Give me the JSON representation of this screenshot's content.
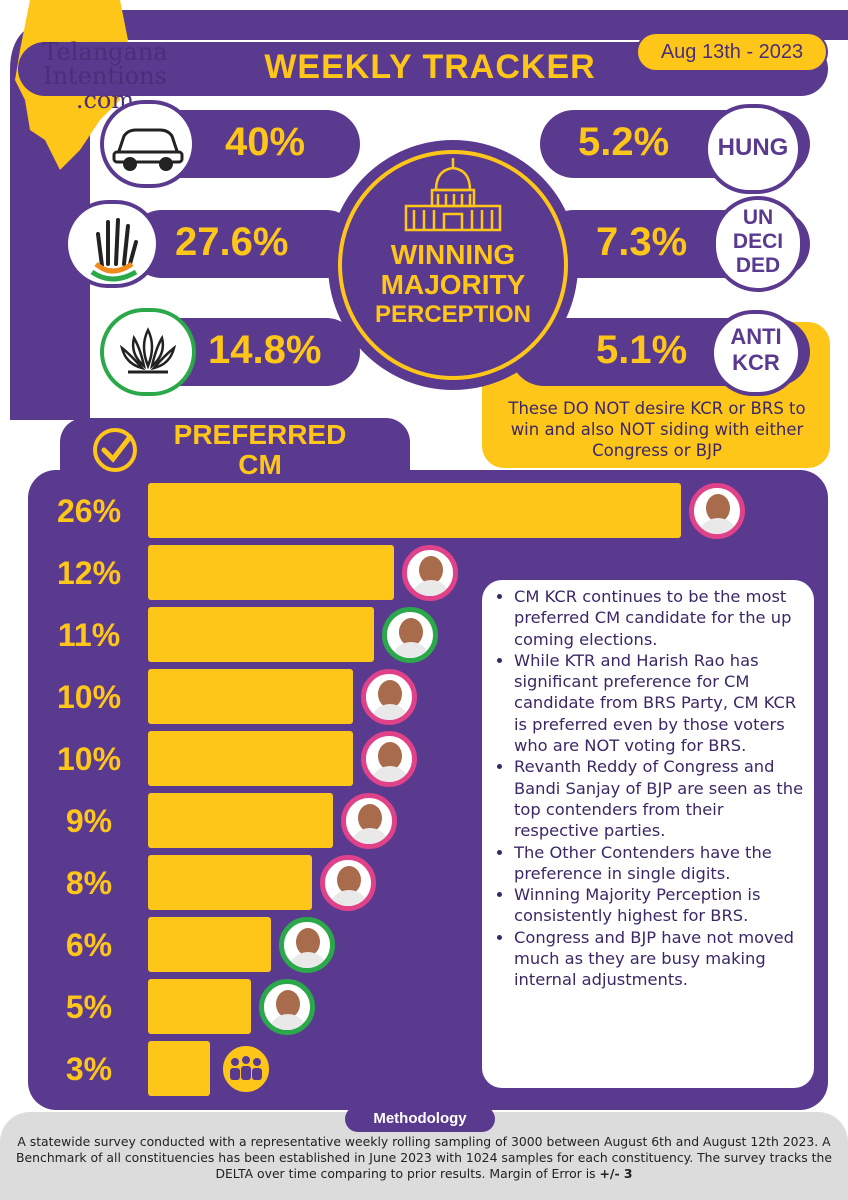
{
  "header": {
    "logo_line1": "Telangana",
    "logo_line2": "Intentions",
    "logo_line3": ".com",
    "title": "WEEKLY TRACKER",
    "date": "Aug 13th -  2023"
  },
  "perception": {
    "center_title_line1": "WINNING",
    "center_title_line2": "MAJORITY",
    "center_title_line3": "PERCEPTION",
    "left": [
      {
        "value": "40%",
        "icon": "car-icon"
      },
      {
        "value": "27.6%",
        "icon": "hand-icon"
      },
      {
        "value": "14.8%",
        "icon": "lotus-icon"
      }
    ],
    "right": [
      {
        "value": "5.2%",
        "label_lines": [
          "HUNG"
        ]
      },
      {
        "value": "7.3%",
        "label_lines": [
          "UN",
          "DECI",
          "DED"
        ]
      },
      {
        "value": "5.1%",
        "label_lines": [
          "ANTI",
          "KCR"
        ]
      }
    ],
    "anti_note": "These DO NOT desire KCR or BRS to win and also NOT siding with either Congress or BJP"
  },
  "preferred_cm": {
    "title_line1": "PREFERRED",
    "title_line2": "CM"
  },
  "chart_data": {
    "type": "bar",
    "orientation": "horizontal",
    "title": "PREFERRED CM",
    "categories": [
      "26%",
      "12%",
      "11%",
      "10%",
      "10%",
      "9%",
      "8%",
      "6%",
      "5%",
      "3%"
    ],
    "values": [
      26,
      12,
      11,
      10,
      10,
      9,
      8,
      6,
      5,
      3
    ],
    "bar_color": "#ffc61a",
    "avatar_rings": [
      "#e0428a",
      "#e0428a",
      "#2aa84a",
      "#e0428a",
      "#e0428a",
      "#e0428a",
      "#e0428a",
      "#2aa84a",
      "#2aa84a",
      "#ffc61a"
    ],
    "xlim": [
      0,
      26
    ]
  },
  "notes": [
    "CM KCR continues to be the most preferred CM candidate for the up coming elections.",
    "While  KTR and Harish Rao has significant preference for CM candidate from BRS Party, CM KCR is preferred even by those voters who are NOT voting for BRS.",
    "Revanth Reddy of Congress and Bandi Sanjay of BJP are seen as the top contenders from their respective parties.",
    "The Other Contenders have the preference in single digits.",
    " Winning Majority Perception is consistently highest for BRS.",
    "Congress and BJP  have not moved much as they  are busy making internal adjustments."
  ],
  "methodology": {
    "title": "Methodology",
    "text": "A statewide survey conducted with a representative weekly rolling sampling of 3000 between August 6th and August 12th 2023. A Benchmark of all constituencies has been established in June 2023 with 1024 samples for each constituency. The survey tracks the DELTA over time comparing to prior results. Margin of Error is ",
    "moe": "+/- 3"
  },
  "colors": {
    "purple": "#5a3a8f",
    "yellow": "#ffc61a"
  }
}
